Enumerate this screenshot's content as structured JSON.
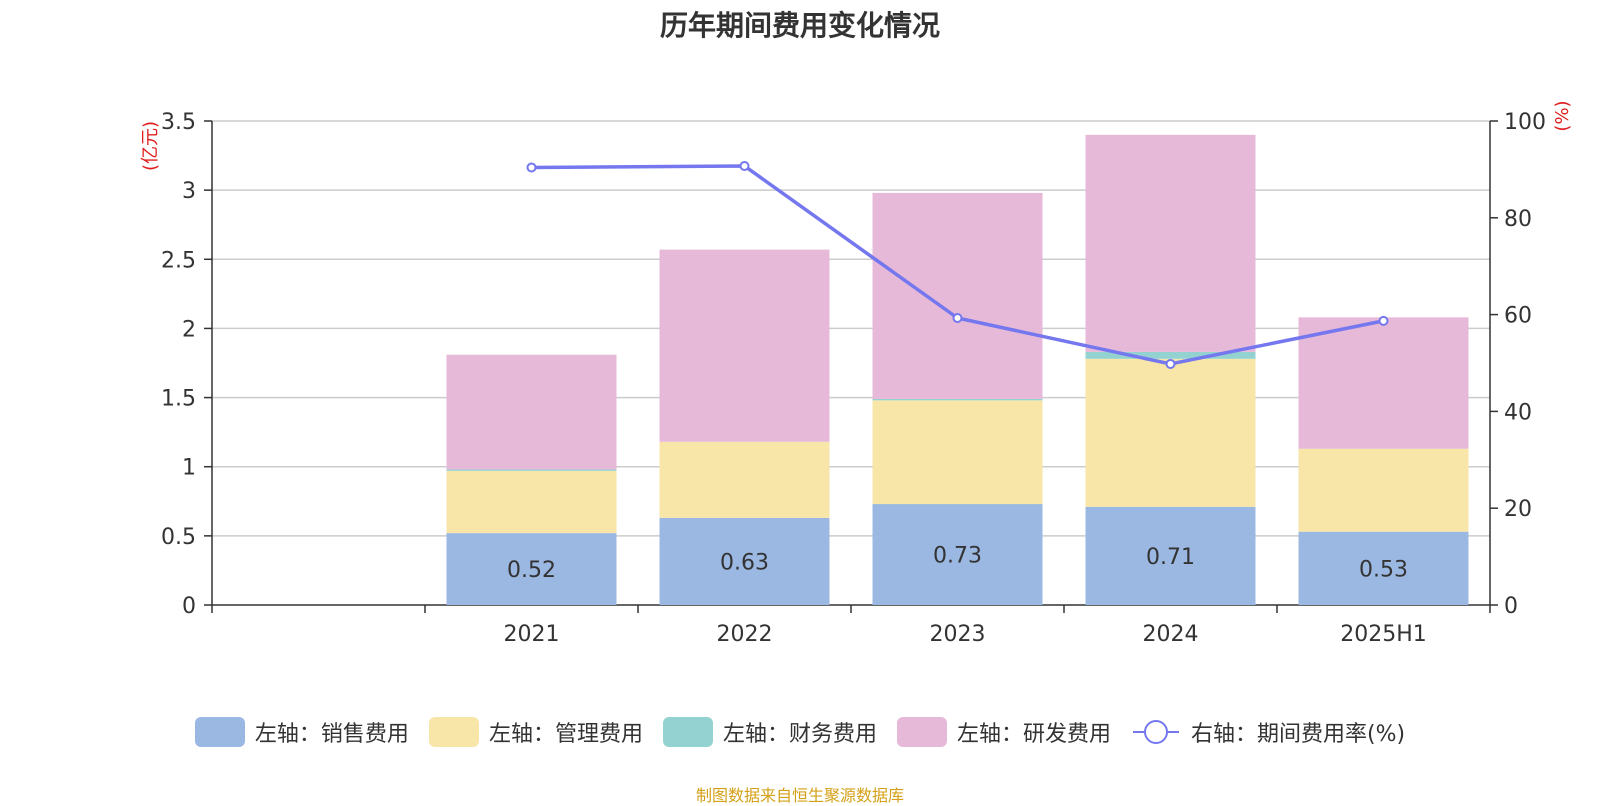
{
  "chart_data": {
    "type": "bar",
    "title": "历年期间费用变化情况",
    "ylabel": "(亿元)",
    "y2label": "(%)",
    "categories": [
      "",
      "2021",
      "2022",
      "2023",
      "2024",
      "2025H1"
    ],
    "ylim": [
      0,
      3.5
    ],
    "y2lim": [
      0,
      100
    ],
    "yticks": [
      "0",
      "0.5",
      "1",
      "1.5",
      "2",
      "2.5",
      "3",
      "3.5"
    ],
    "y2ticks": [
      "0",
      "20",
      "40",
      "60",
      "80",
      "100"
    ],
    "series": [
      {
        "name": "左轴：销售费用",
        "kind": "bar",
        "color": "#9bb8e3",
        "values": [
          null,
          0.52,
          0.63,
          0.73,
          0.71,
          0.53
        ],
        "labels": [
          "",
          "0.52",
          "0.63",
          "0.73",
          "0.71",
          "0.53"
        ]
      },
      {
        "name": "左轴：管理费用",
        "kind": "bar",
        "color": "#f7e6a8",
        "values": [
          null,
          0.45,
          0.55,
          0.75,
          1.07,
          0.6
        ]
      },
      {
        "name": "左轴：财务费用",
        "kind": "bar",
        "color": "#94d2d2",
        "values": [
          null,
          0.01,
          0.0,
          0.01,
          0.05,
          0.0
        ]
      },
      {
        "name": "左轴：研发费用",
        "kind": "bar",
        "color": "#e7b9d9",
        "values": [
          null,
          0.83,
          1.39,
          1.49,
          1.57,
          0.95
        ]
      },
      {
        "name": "右轴：期间费用率(%)",
        "kind": "line",
        "color": "#7477ee",
        "values": [
          null,
          90.4,
          90.7,
          59.3,
          49.8,
          58.7
        ]
      }
    ]
  },
  "source": "制图数据来自恒生聚源数据库"
}
